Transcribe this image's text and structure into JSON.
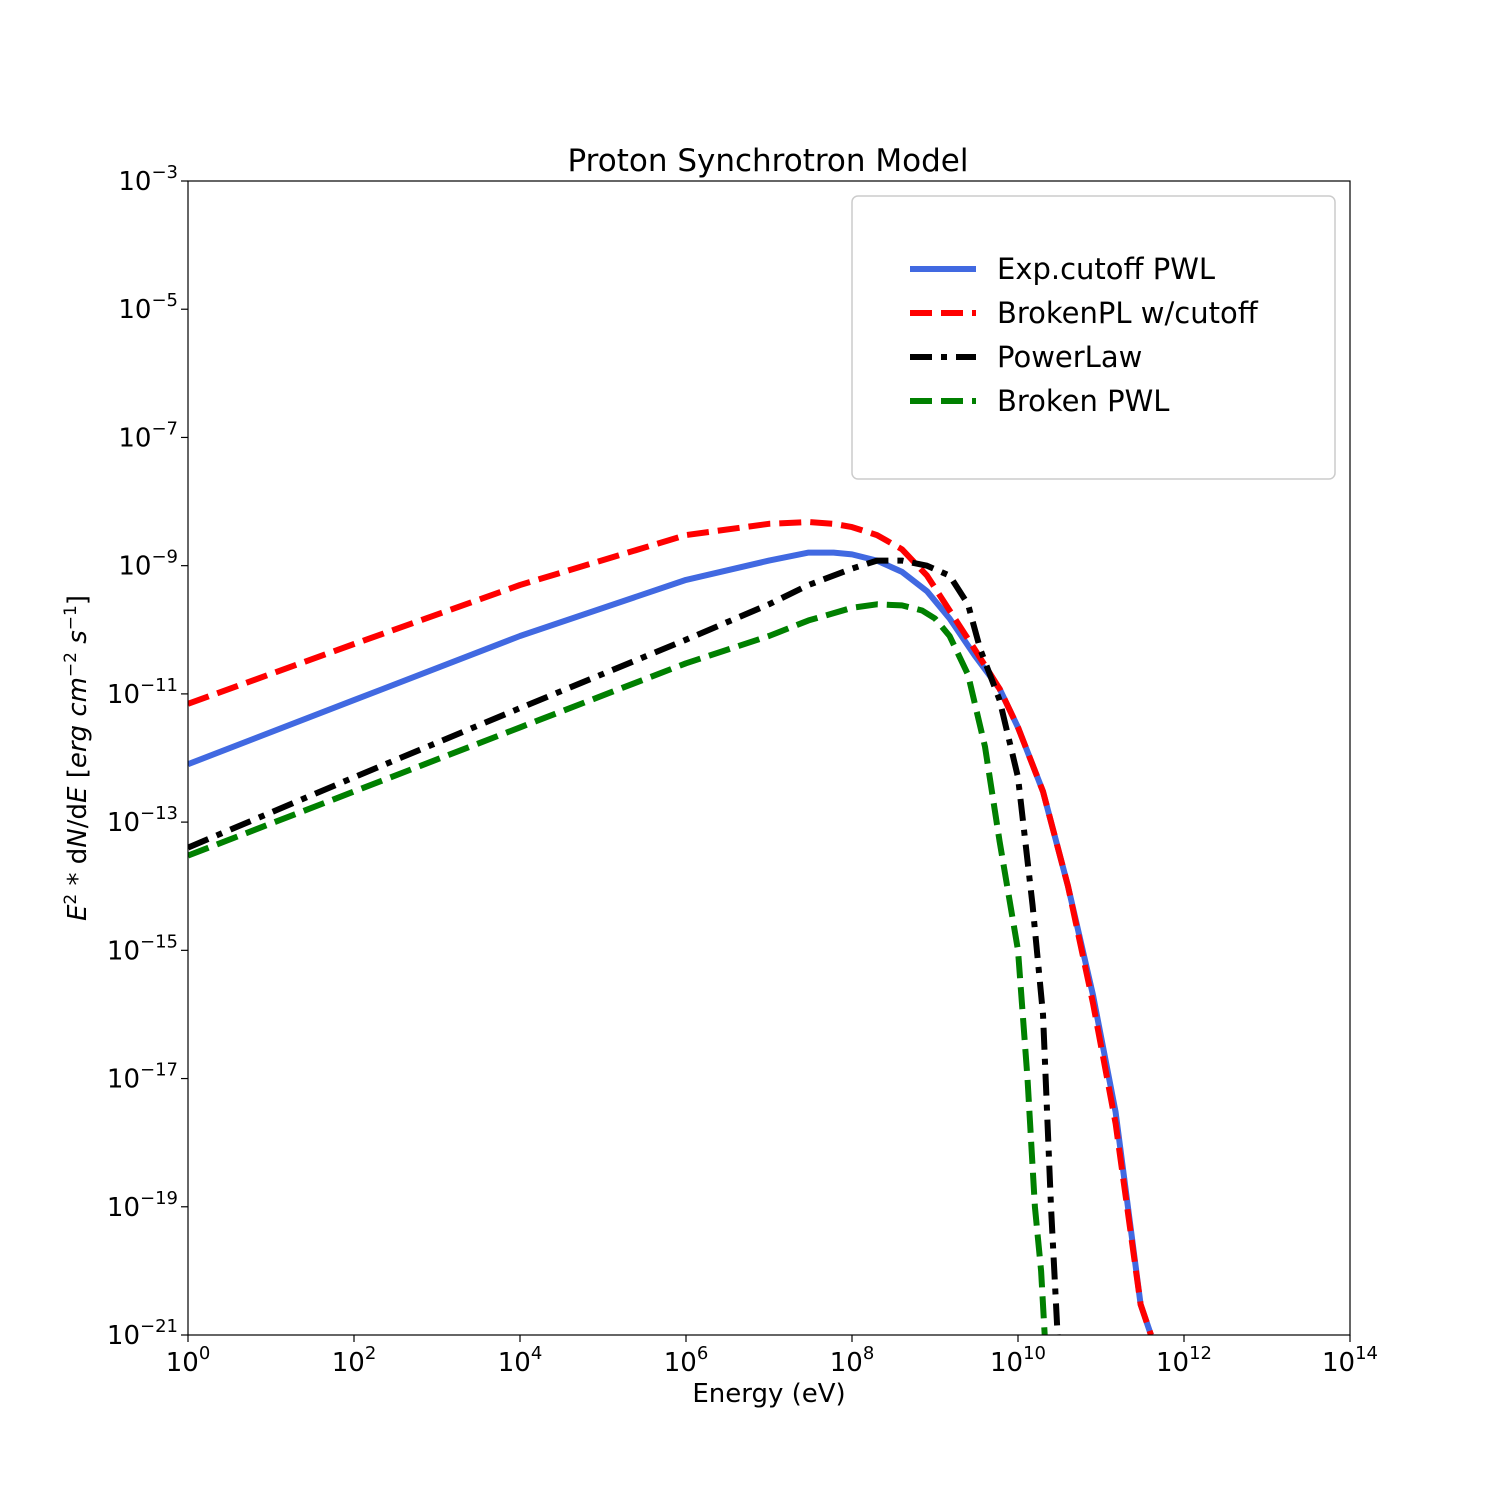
{
  "chart_data": {
    "type": "line",
    "title": "Proton Synchrotron Model",
    "xlabel": "Energy (eV)",
    "ylabel": "E^2 * dN/dE [erg cm^-2 s^-1]",
    "x_scale": "log",
    "y_scale": "log",
    "xlim": [
      1,
      100000000000000.0
    ],
    "ylim": [
      1e-21,
      0.001
    ],
    "x_ticks": [
      {
        "base": "10",
        "exp": "0",
        "value": 1
      },
      {
        "base": "10",
        "exp": "2",
        "value": 100.0
      },
      {
        "base": "10",
        "exp": "4",
        "value": 10000.0
      },
      {
        "base": "10",
        "exp": "6",
        "value": 1000000.0
      },
      {
        "base": "10",
        "exp": "8",
        "value": 100000000.0
      },
      {
        "base": "10",
        "exp": "10",
        "value": 10000000000.0
      },
      {
        "base": "10",
        "exp": "12",
        "value": 1000000000000.0
      },
      {
        "base": "10",
        "exp": "14",
        "value": 100000000000000.0
      }
    ],
    "y_ticks": [
      {
        "base": "10",
        "exp": "−21",
        "value": 1e-21
      },
      {
        "base": "10",
        "exp": "−19",
        "value": 1e-19
      },
      {
        "base": "10",
        "exp": "−17",
        "value": 1e-17
      },
      {
        "base": "10",
        "exp": "−15",
        "value": 1e-15
      },
      {
        "base": "10",
        "exp": "−13",
        "value": 1e-13
      },
      {
        "base": "10",
        "exp": "−11",
        "value": 1e-11
      },
      {
        "base": "10",
        "exp": "−9",
        "value": 1e-09
      },
      {
        "base": "10",
        "exp": "−7",
        "value": 1e-07
      },
      {
        "base": "10",
        "exp": "−5",
        "value": 1e-05
      },
      {
        "base": "10",
        "exp": "−3",
        "value": 0.001
      }
    ],
    "grid": false,
    "legend_position": "top-right",
    "series": [
      {
        "name": "Exp.cutoff PWL",
        "color": "#4169e1",
        "style": "solid",
        "x": [
          1,
          100.0,
          10000.0,
          1000000.0,
          10000000.0,
          30000000.0,
          60000000.0,
          100000000.0,
          200000000.0,
          400000000.0,
          800000000.0,
          1500000000.0,
          3000000000.0,
          6000000000.0,
          10000000000.0,
          20000000000.0,
          40000000000.0,
          80000000000.0,
          150000000000.0,
          300000000000.0,
          400000000000.0
        ],
        "y": [
          8e-13,
          8e-12,
          8e-11,
          6e-10,
          1.2e-09,
          1.6e-09,
          1.6e-09,
          1.5e-09,
          1.2e-09,
          8e-10,
          4e-10,
          1.5e-10,
          4e-11,
          1.2e-11,
          3e-12,
          3e-13,
          1e-14,
          2e-16,
          3e-18,
          3e-21,
          1e-21
        ]
      },
      {
        "name": "BrokenPL w/cutoff",
        "color": "#ff0000",
        "style": "dashed",
        "x": [
          1,
          100.0,
          10000.0,
          1000000.0,
          10000000.0,
          30000000.0,
          60000000.0,
          100000000.0,
          200000000.0,
          400000000.0,
          800000000.0,
          1500000000.0,
          3000000000.0,
          6000000000.0,
          10000000000.0,
          20000000000.0,
          40000000000.0,
          80000000000.0,
          150000000000.0,
          300000000000.0,
          400000000000.0
        ],
        "y": [
          7e-12,
          6e-11,
          5e-10,
          3e-09,
          4.5e-09,
          4.8e-09,
          4.5e-09,
          4e-09,
          3e-09,
          1.8e-09,
          7e-10,
          2e-10,
          5e-11,
          1.2e-11,
          3e-12,
          3e-13,
          1e-14,
          1.5e-16,
          2e-18,
          3e-21,
          1e-21
        ]
      },
      {
        "name": "PowerLaw",
        "color": "#000000",
        "style": "dashdot",
        "x": [
          1,
          100.0,
          10000.0,
          1000000.0,
          10000000.0,
          30000000.0,
          100000000.0,
          200000000.0,
          400000000.0,
          800000000.0,
          1500000000.0,
          2500000000.0,
          3500000000.0,
          6000000000.0,
          10000000000.0,
          15000000000.0,
          20000000000.0,
          25000000000.0,
          30000000000.0
        ],
        "y": [
          4e-14,
          5e-13,
          6e-12,
          7e-11,
          2.5e-10,
          5e-10,
          9e-10,
          1.2e-09,
          1.2e-09,
          1e-09,
          7e-10,
          2.5e-10,
          5e-11,
          8e-12,
          5e-13,
          5e-15,
          1e-16,
          1e-19,
          1e-21
        ]
      },
      {
        "name": "Broken PWL",
        "color": "#008000",
        "style": "dashed",
        "x": [
          1,
          100.0,
          10000.0,
          1000000.0,
          10000000.0,
          30000000.0,
          100000000.0,
          200000000.0,
          400000000.0,
          700000000.0,
          1000000000.0,
          1500000000.0,
          2500000000.0,
          4000000000.0,
          6000000000.0,
          10000000000.0,
          13000000000.0,
          16000000000.0,
          19000000000.0,
          21000000000.0
        ],
        "y": [
          3e-14,
          3e-13,
          3e-12,
          3e-11,
          8e-11,
          1.4e-10,
          2.2e-10,
          2.5e-10,
          2.4e-10,
          2e-10,
          1.5e-10,
          8e-11,
          2e-11,
          1.5e-12,
          5e-14,
          1e-15,
          1e-17,
          1e-19,
          1e-20,
          1e-21
        ]
      }
    ]
  }
}
